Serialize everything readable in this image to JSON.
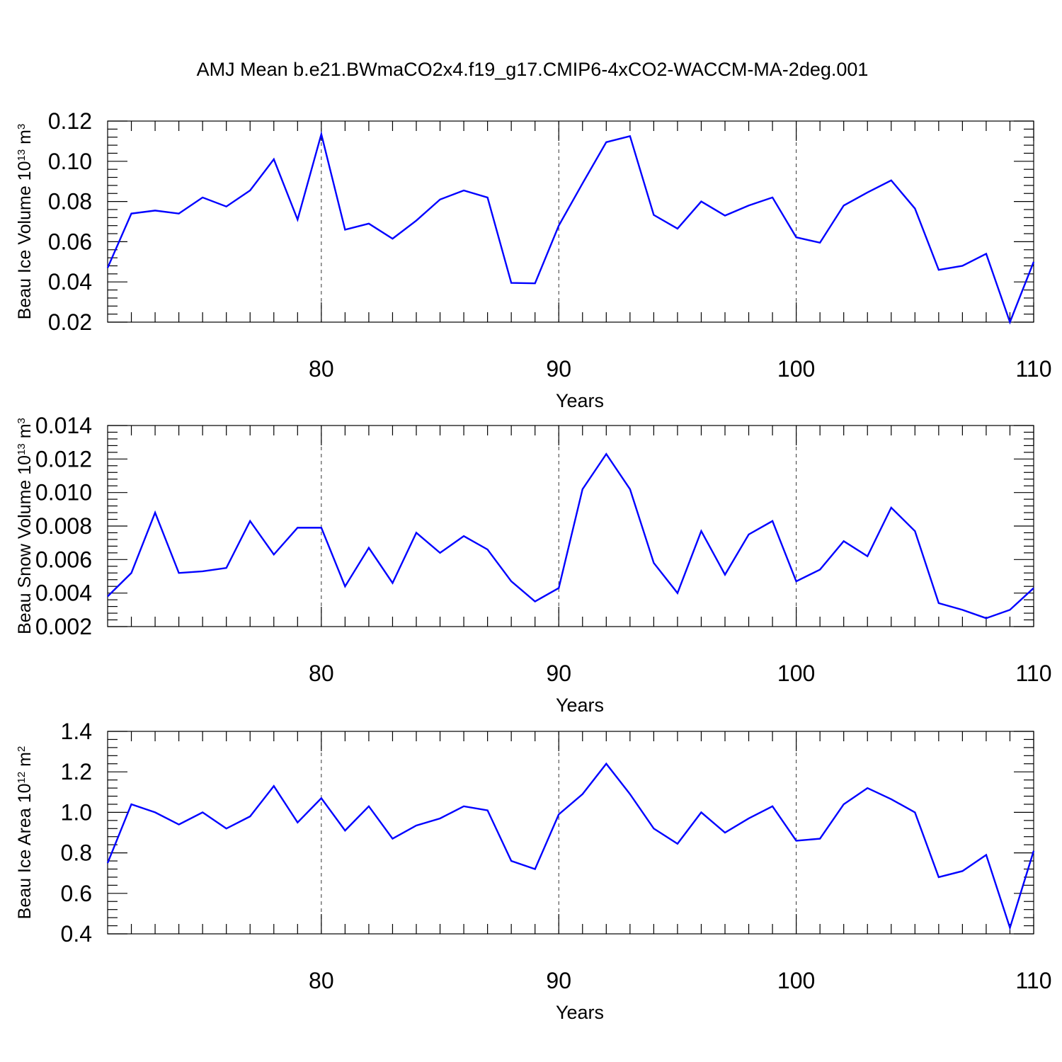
{
  "title": "AMJ Mean b.e21.BWmaCO2x4.f19_g17.CMIP6-4xCO2-WACCM-MA-2deg.001",
  "line_color": "#0000ff",
  "chart_data": [
    {
      "type": "line",
      "ylabel": {
        "text": "Beau Ice Volume 10",
        "exp": "13",
        "unit": " m",
        "unit_exp": "3"
      },
      "xlabel": "Years",
      "xlim": [
        71,
        110
      ],
      "ylim": [
        0.02,
        0.12
      ],
      "xticks": [
        80,
        90,
        100,
        110
      ],
      "xtick_labels": [
        "80",
        "90",
        "100",
        "110"
      ],
      "yticks": [
        0.02,
        0.04,
        0.06,
        0.08,
        0.1,
        0.12
      ],
      "ytick_labels": [
        "0.02",
        "0.04",
        "0.06",
        "0.08",
        "0.10",
        "0.12"
      ],
      "grid_x": [
        80,
        90,
        100
      ],
      "x": [
        71,
        72,
        73,
        74,
        75,
        76,
        77,
        78,
        79,
        80,
        81,
        82,
        83,
        84,
        85,
        86,
        87,
        88,
        89,
        90,
        91,
        92,
        93,
        94,
        95,
        96,
        97,
        98,
        99,
        100,
        101,
        102,
        103,
        104,
        105,
        106,
        107,
        108,
        109,
        110
      ],
      "values": [
        0.047,
        0.074,
        0.0755,
        0.074,
        0.082,
        0.0775,
        0.0855,
        0.101,
        0.071,
        0.1135,
        0.066,
        0.069,
        0.0615,
        0.0705,
        0.081,
        0.0855,
        0.082,
        0.0395,
        0.0393,
        0.068,
        0.089,
        0.1095,
        0.1125,
        0.0733,
        0.0665,
        0.08,
        0.073,
        0.078,
        0.082,
        0.0622,
        0.0595,
        0.078,
        0.0845,
        0.0905,
        0.0765,
        0.046,
        0.048,
        0.054,
        0.02,
        0.05
      ]
    },
    {
      "type": "line",
      "ylabel": {
        "text": "Beau Snow Volume 10",
        "exp": "13",
        "unit": " m",
        "unit_exp": "3"
      },
      "xlabel": "Years",
      "xlim": [
        71,
        110
      ],
      "ylim": [
        0.002,
        0.014
      ],
      "xticks": [
        80,
        90,
        100,
        110
      ],
      "xtick_labels": [
        "80",
        "90",
        "100",
        "110"
      ],
      "yticks": [
        0.002,
        0.004,
        0.006,
        0.008,
        0.01,
        0.012,
        0.014
      ],
      "ytick_labels": [
        "0.002",
        "0.004",
        "0.006",
        "0.008",
        "0.010",
        "0.012",
        "0.014"
      ],
      "grid_x": [
        80,
        90,
        100
      ],
      "x": [
        71,
        72,
        73,
        74,
        75,
        76,
        77,
        78,
        79,
        80,
        81,
        82,
        83,
        84,
        85,
        86,
        87,
        88,
        89,
        90,
        91,
        92,
        93,
        94,
        95,
        96,
        97,
        98,
        99,
        100,
        101,
        102,
        103,
        104,
        105,
        106,
        107,
        108,
        109,
        110
      ],
      "values": [
        0.0038,
        0.0052,
        0.0088,
        0.0052,
        0.0053,
        0.0055,
        0.0083,
        0.0063,
        0.0079,
        0.0079,
        0.0044,
        0.0067,
        0.0046,
        0.0076,
        0.0064,
        0.0074,
        0.0066,
        0.0047,
        0.0035,
        0.0043,
        0.0102,
        0.0123,
        0.0102,
        0.0058,
        0.004,
        0.0077,
        0.0051,
        0.0075,
        0.0083,
        0.0047,
        0.0054,
        0.0071,
        0.0062,
        0.0091,
        0.0077,
        0.0034,
        0.003,
        0.0025,
        0.003,
        0.0043
      ]
    },
    {
      "type": "line",
      "ylabel": {
        "text": "Beau Ice Area 10",
        "exp": "12",
        "unit": " m",
        "unit_exp": "2"
      },
      "xlabel": "Years",
      "xlim": [
        71,
        110
      ],
      "ylim": [
        0.4,
        1.4
      ],
      "xticks": [
        80,
        90,
        100,
        110
      ],
      "xtick_labels": [
        "80",
        "90",
        "100",
        "110"
      ],
      "yticks": [
        0.4,
        0.6,
        0.8,
        1.0,
        1.2,
        1.4
      ],
      "ytick_labels": [
        "0.4",
        "0.6",
        "0.8",
        "1.0",
        "1.2",
        "1.4"
      ],
      "grid_x": [
        80,
        90,
        100
      ],
      "x": [
        71,
        72,
        73,
        74,
        75,
        76,
        77,
        78,
        79,
        80,
        81,
        82,
        83,
        84,
        85,
        86,
        87,
        88,
        89,
        90,
        91,
        92,
        93,
        94,
        95,
        96,
        97,
        98,
        99,
        100,
        101,
        102,
        103,
        104,
        105,
        106,
        107,
        108,
        109,
        110
      ],
      "values": [
        0.75,
        1.04,
        1.0,
        0.94,
        1.0,
        0.92,
        0.98,
        1.13,
        0.95,
        1.07,
        0.91,
        1.03,
        0.87,
        0.935,
        0.97,
        1.03,
        1.01,
        0.76,
        0.72,
        0.99,
        1.09,
        1.24,
        1.09,
        0.92,
        0.845,
        1.0,
        0.9,
        0.97,
        1.03,
        0.86,
        0.87,
        1.04,
        1.12,
        1.065,
        1.0,
        0.68,
        0.71,
        0.79,
        0.43,
        0.81
      ]
    }
  ]
}
